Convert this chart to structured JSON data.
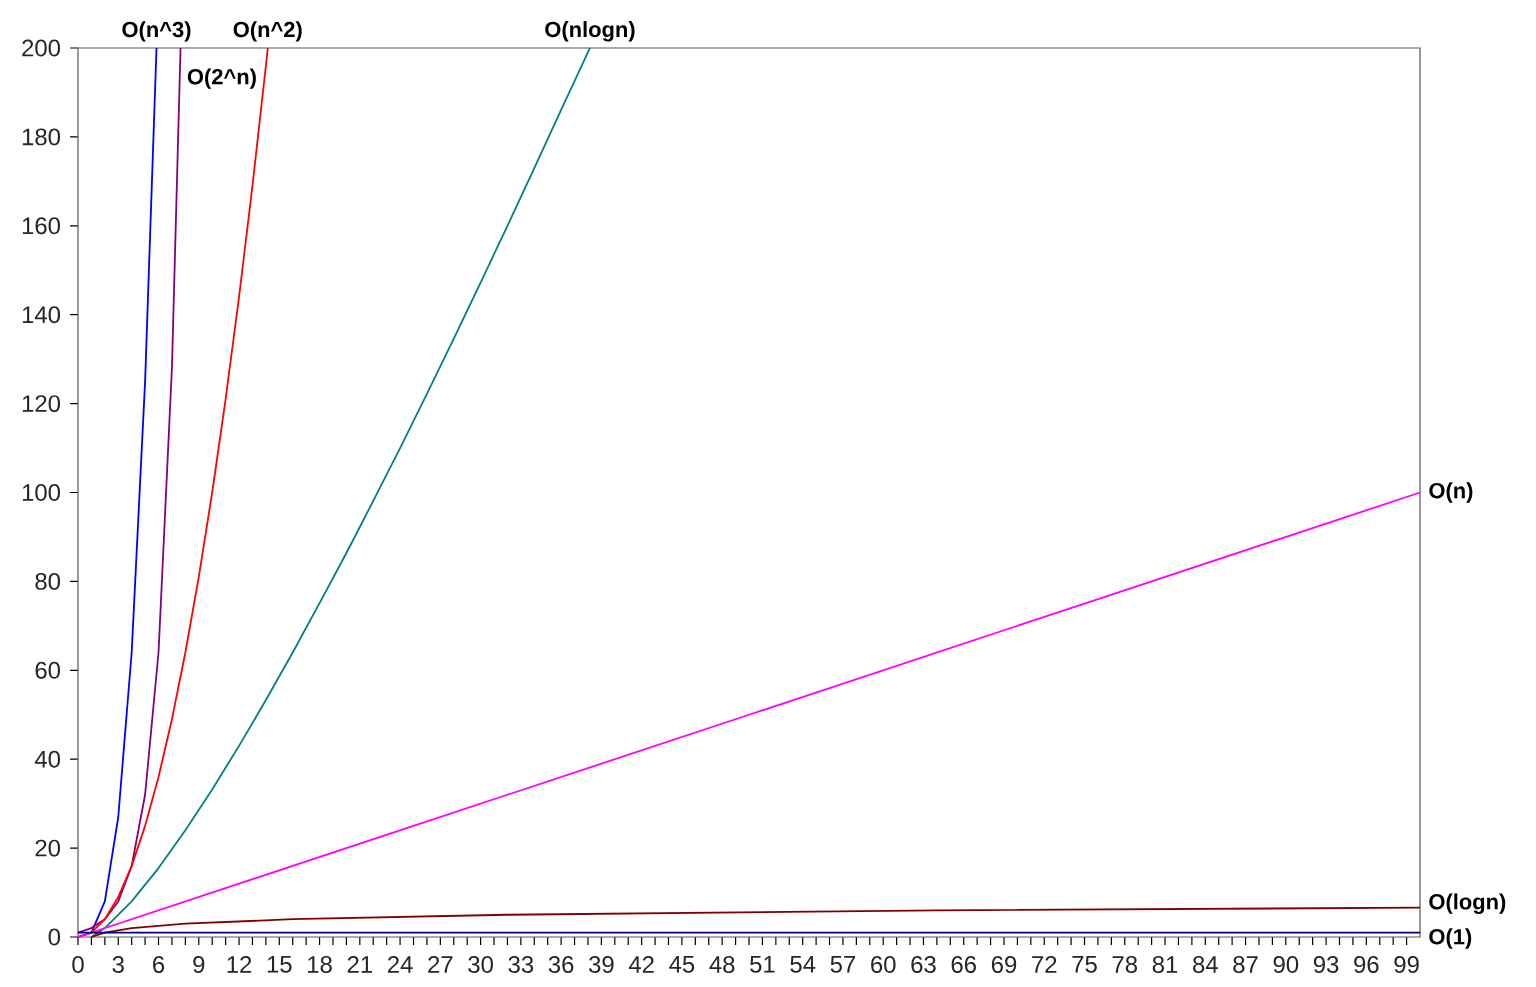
{
  "chart_data": {
    "type": "line",
    "xlim": [
      0,
      100
    ],
    "xticks": [
      0,
      3,
      6,
      9,
      12,
      15,
      18,
      21,
      24,
      27,
      30,
      33,
      36,
      39,
      42,
      45,
      48,
      51,
      54,
      57,
      60,
      63,
      66,
      69,
      72,
      75,
      78,
      81,
      84,
      87,
      90,
      93,
      96,
      99
    ],
    "ylim": [
      0,
      200
    ],
    "yticks": [
      0,
      20,
      40,
      60,
      80,
      100,
      120,
      140,
      160,
      180,
      200
    ],
    "grid": false,
    "marker": "none",
    "line_style": "solid",
    "series": [
      {
        "name": "O(n^3)",
        "color": "#0000ff",
        "x": [
          0,
          1,
          2,
          3,
          4,
          5,
          5.85
        ],
        "values": [
          0,
          1,
          8,
          27,
          64,
          125,
          200
        ]
      },
      {
        "name": "O(2^n)",
        "color": "#800080",
        "x": [
          0,
          1,
          2,
          3,
          4,
          5,
          6,
          7,
          7.64
        ],
        "values": [
          1,
          2,
          4,
          8,
          16,
          32,
          64,
          128,
          200
        ]
      },
      {
        "name": "O(n^2)",
        "color": "#ff0000",
        "x": [
          0,
          1,
          2,
          3,
          4,
          5,
          6,
          7,
          8,
          9,
          10,
          11,
          12,
          13,
          14,
          14.14
        ],
        "values": [
          0,
          1,
          4,
          9,
          16,
          25,
          36,
          49,
          64,
          81,
          100,
          121,
          144,
          169,
          196,
          200
        ]
      },
      {
        "name": "O(nlogn)",
        "color": "#008080",
        "x": [
          1,
          2,
          4,
          6,
          8,
          10,
          12,
          14,
          16,
          18,
          20,
          22,
          24,
          26,
          28,
          30,
          32,
          34,
          36,
          38.15
        ],
        "values": [
          0,
          2,
          8,
          15.5,
          24,
          33.2,
          43,
          53.3,
          64,
          75.1,
          86.4,
          98.1,
          110,
          122.2,
          134.6,
          147.2,
          160,
          173,
          186.1,
          200
        ]
      },
      {
        "name": "O(n)",
        "color": "#ff00ff",
        "x": [
          0,
          25,
          50,
          75,
          100
        ],
        "values": [
          0,
          25,
          50,
          75,
          100
        ]
      },
      {
        "name": "O(logn)",
        "color": "#800000",
        "x": [
          1,
          2,
          4,
          8,
          16,
          32,
          64,
          100
        ],
        "values": [
          0,
          1,
          2,
          3,
          4,
          5,
          6,
          6.6
        ]
      },
      {
        "name": "O(1)",
        "color": "#000080",
        "x": [
          0,
          100
        ],
        "values": [
          1,
          1
        ]
      }
    ]
  }
}
